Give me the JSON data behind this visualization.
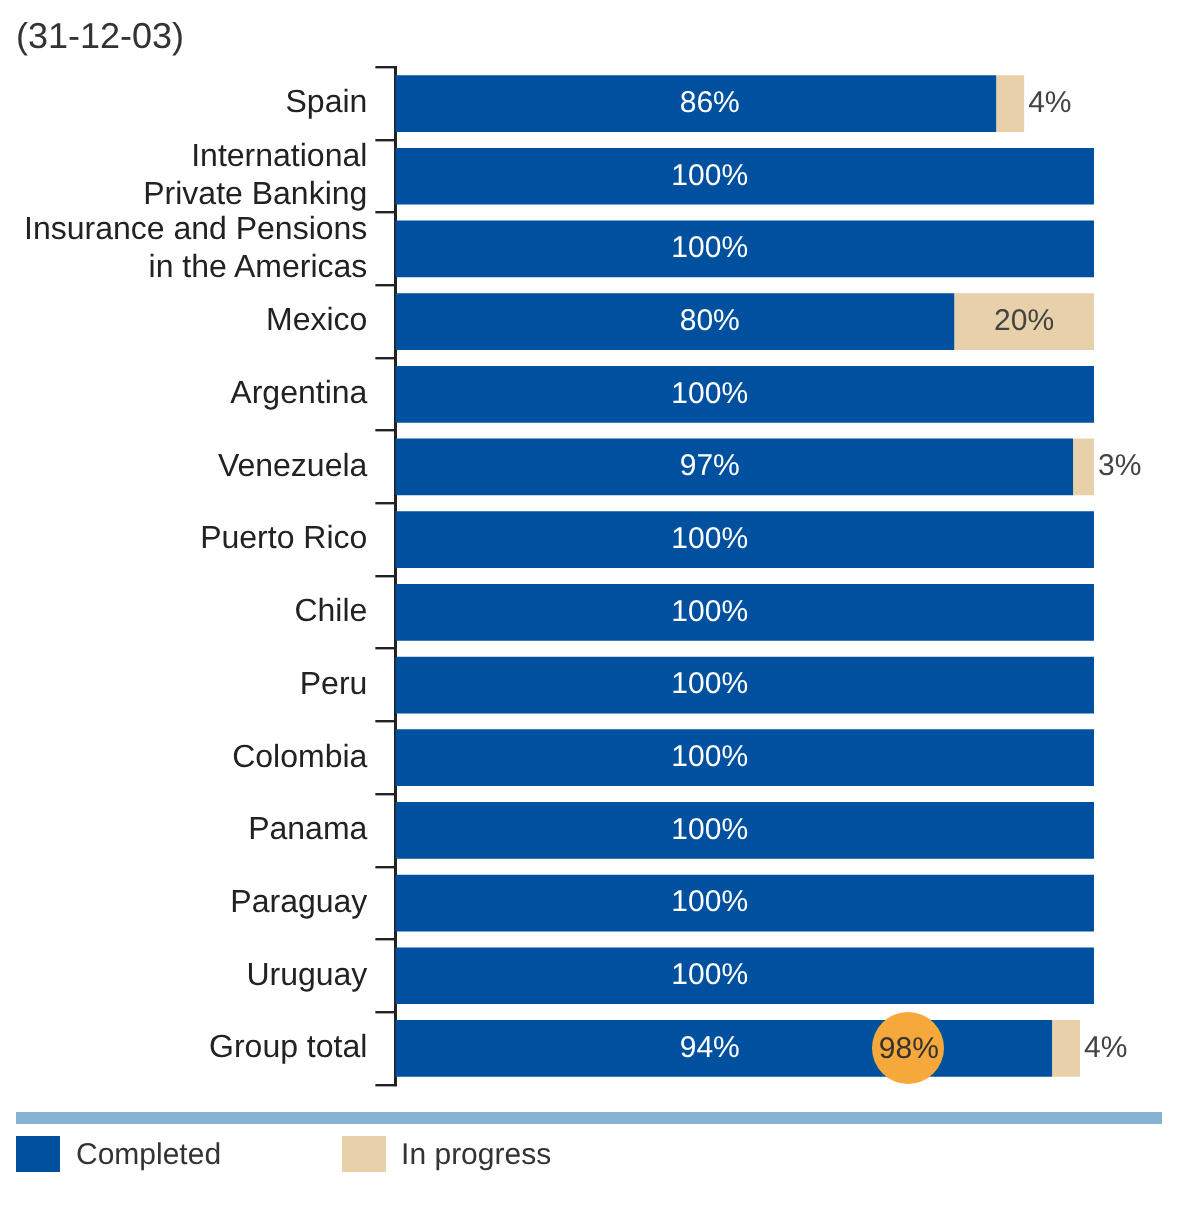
{
  "chart_data": {
    "type": "bar",
    "orientation": "horizontal",
    "stacked": true,
    "subtitle": "(31-12-03)",
    "categories": [
      "Spain",
      "International Private Banking",
      "Insurance and Pensions in the Americas",
      "Mexico",
      "Argentina",
      "Venezuela",
      "Puerto Rico",
      "Chile",
      "Peru",
      "Colombia",
      "Panama",
      "Paraguay",
      "Uruguay",
      "Group total"
    ],
    "xlim": [
      0,
      100
    ],
    "series": [
      {
        "name": "Completed",
        "color": "#0050a0",
        "values": [
          86,
          100,
          100,
          80,
          100,
          97,
          100,
          100,
          100,
          100,
          100,
          100,
          100,
          94
        ],
        "value_labels": [
          "86%",
          "100%",
          "100%",
          "80%",
          "100%",
          "97%",
          "100%",
          "100%",
          "100%",
          "100%",
          "100%",
          "100%",
          "100%",
          "94%"
        ]
      },
      {
        "name": "In progress",
        "color": "#e8d1aa",
        "values": [
          4,
          null,
          null,
          20,
          null,
          3,
          null,
          null,
          null,
          null,
          null,
          null,
          null,
          4
        ],
        "value_labels": [
          "4%",
          null,
          null,
          "20%",
          null,
          "3%",
          null,
          null,
          null,
          null,
          null,
          null,
          null,
          "4%"
        ]
      }
    ],
    "annotations": [
      {
        "text": "98%",
        "y": "Group total"
      }
    ],
    "legend": "bottom",
    "grid": false
  }
}
